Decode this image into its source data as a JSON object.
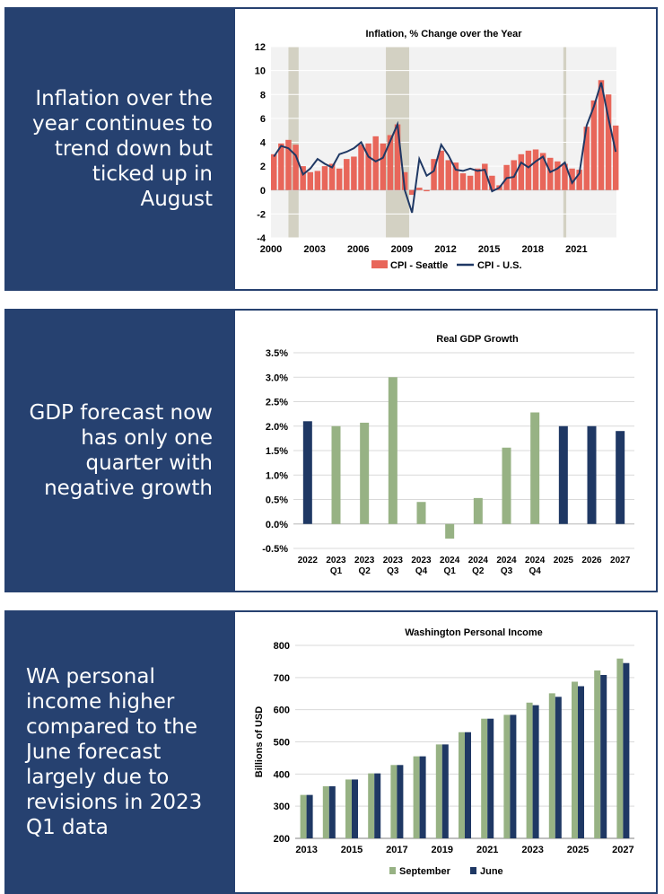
{
  "panels": [
    {
      "caption": "Inflation over the year continues to trend down but ticked up in August",
      "chart_data": {
        "type": "line",
        "title": "Inflation, % Change over the Year",
        "xlabel": "",
        "ylabel": "",
        "x_tick_labels": [
          "2000",
          "2003",
          "2006",
          "2009",
          "2012",
          "2015",
          "2018",
          "2021"
        ],
        "xlim": [
          2000,
          2023.75
        ],
        "ylim": [
          -4,
          12
        ],
        "y_ticks": [
          -4,
          -2,
          0,
          2,
          4,
          6,
          8,
          10,
          12
        ],
        "grid": true,
        "legend_position": "bottom",
        "recession_bands": [
          [
            2001.2,
            2001.9
          ],
          [
            2007.9,
            2009.5
          ],
          [
            2020.1,
            2020.3
          ]
        ],
        "series": [
          {
            "name": "CPI - Seattle",
            "type": "bar",
            "color": "#e8665a",
            "x": [
              2000.0,
              2000.5,
              2001.0,
              2001.5,
              2002.0,
              2002.5,
              2003.0,
              2003.5,
              2004.0,
              2004.5,
              2005.0,
              2005.5,
              2006.0,
              2006.5,
              2007.0,
              2007.5,
              2008.0,
              2008.5,
              2009.0,
              2009.5,
              2010.0,
              2010.5,
              2011.0,
              2011.5,
              2012.0,
              2012.5,
              2013.0,
              2013.5,
              2014.0,
              2014.5,
              2015.0,
              2015.5,
              2016.0,
              2016.5,
              2017.0,
              2017.5,
              2018.0,
              2018.5,
              2019.0,
              2019.5,
              2020.0,
              2020.5,
              2021.0,
              2021.5,
              2022.0,
              2022.5,
              2023.0,
              2023.5
            ],
            "values": [
              3.0,
              3.9,
              4.2,
              3.8,
              2.0,
              1.5,
              1.6,
              2.0,
              2.2,
              1.8,
              2.6,
              2.8,
              3.8,
              3.9,
              4.5,
              3.9,
              4.6,
              5.5,
              1.5,
              -0.4,
              0.2,
              -0.1,
              2.6,
              3.3,
              2.5,
              2.3,
              1.4,
              1.2,
              1.8,
              2.2,
              1.2,
              0.4,
              2.1,
              2.5,
              3.0,
              3.3,
              3.4,
              3.1,
              2.7,
              2.4,
              2.2,
              1.8,
              1.7,
              5.3,
              7.5,
              9.2,
              8.0,
              5.4
            ]
          },
          {
            "name": "CPI - U.S.",
            "type": "line",
            "color": "#1f3864",
            "x": [
              2000.0,
              2000.5,
              2001.0,
              2001.5,
              2002.0,
              2002.5,
              2003.0,
              2003.5,
              2004.0,
              2004.5,
              2005.0,
              2005.5,
              2006.0,
              2006.5,
              2007.0,
              2007.5,
              2008.0,
              2008.5,
              2009.0,
              2009.5,
              2010.0,
              2010.5,
              2011.0,
              2011.5,
              2012.0,
              2012.5,
              2013.0,
              2013.5,
              2014.0,
              2014.5,
              2015.0,
              2015.5,
              2016.0,
              2016.5,
              2017.0,
              2017.5,
              2018.0,
              2018.5,
              2019.0,
              2019.5,
              2020.0,
              2020.5,
              2021.0,
              2021.5,
              2022.0,
              2022.5,
              2023.0,
              2023.5
            ],
            "values": [
              2.8,
              3.7,
              3.5,
              2.9,
              1.3,
              1.8,
              2.6,
              2.2,
              1.9,
              3.0,
              3.2,
              3.5,
              4.0,
              2.8,
              2.4,
              2.7,
              4.1,
              5.5,
              0.0,
              -1.9,
              2.6,
              1.2,
              1.6,
              3.8,
              2.9,
              1.7,
              1.6,
              1.8,
              1.6,
              1.7,
              -0.1,
              0.2,
              1.0,
              1.1,
              2.3,
              1.9,
              2.4,
              2.8,
              1.5,
              1.8,
              2.3,
              0.6,
              1.4,
              5.4,
              7.0,
              9.0,
              6.0,
              3.2
            ]
          }
        ]
      }
    },
    {
      "caption": "GDP forecast now has only one quarter with negative growth",
      "chart_data": {
        "type": "bar",
        "title": "Real GDP Growth",
        "xlabel": "",
        "ylabel": "",
        "categories": [
          [
            "2022",
            ""
          ],
          [
            "2023",
            "Q1"
          ],
          [
            "2023",
            "Q2"
          ],
          [
            "2023",
            "Q3"
          ],
          [
            "2023",
            "Q4"
          ],
          [
            "2024",
            "Q1"
          ],
          [
            "2024",
            "Q2"
          ],
          [
            "2024",
            "Q3"
          ],
          [
            "2024",
            "Q4"
          ],
          [
            "2025",
            ""
          ],
          [
            "2026",
            ""
          ],
          [
            "2027",
            ""
          ]
        ],
        "values": [
          2.1,
          2.0,
          2.07,
          3.0,
          0.45,
          -0.3,
          0.53,
          1.56,
          2.28,
          2.0,
          2.0,
          1.9
        ],
        "bar_colors": [
          "#1f3864",
          "#97b284",
          "#97b284",
          "#97b284",
          "#97b284",
          "#97b284",
          "#97b284",
          "#97b284",
          "#97b284",
          "#1f3864",
          "#1f3864",
          "#1f3864"
        ],
        "ylim": [
          -0.5,
          3.5
        ],
        "y_ticks": [
          "-0.5%",
          "0.0%",
          "0.5%",
          "1.0%",
          "1.5%",
          "2.0%",
          "2.5%",
          "3.0%",
          "3.5%"
        ],
        "grid": true
      }
    },
    {
      "caption": "WA personal income higher compared to the June forecast largely due to revisions in 2023 Q1 data",
      "chart_data": {
        "type": "bar",
        "title": "Washington Personal Income",
        "xlabel": "",
        "ylabel": "Billions of USD",
        "categories": [
          "2013",
          "2014",
          "2015",
          "2016",
          "2017",
          "2018",
          "2019",
          "2020",
          "2021",
          "2022",
          "2023",
          "2024",
          "2025",
          "2026",
          "2027"
        ],
        "x_tick_labels": [
          "2013",
          "2015",
          "2017",
          "2019",
          "2021",
          "2023",
          "2025",
          "2027"
        ],
        "ylim": [
          200,
          800
        ],
        "y_ticks": [
          200,
          300,
          400,
          500,
          600,
          700,
          800
        ],
        "grid": true,
        "legend_position": "bottom",
        "series": [
          {
            "name": "September",
            "color": "#97b284",
            "values": [
              335,
              362,
              383,
              402,
              428,
              455,
              492,
              530,
              572,
              584,
              622,
              651,
              687,
              722,
              759
            ]
          },
          {
            "name": "June",
            "color": "#1f3864",
            "values": [
              335,
              362,
              383,
              402,
              428,
              455,
              492,
              530,
              572,
              584,
              614,
              640,
              673,
              708,
              745
            ]
          }
        ]
      }
    }
  ]
}
